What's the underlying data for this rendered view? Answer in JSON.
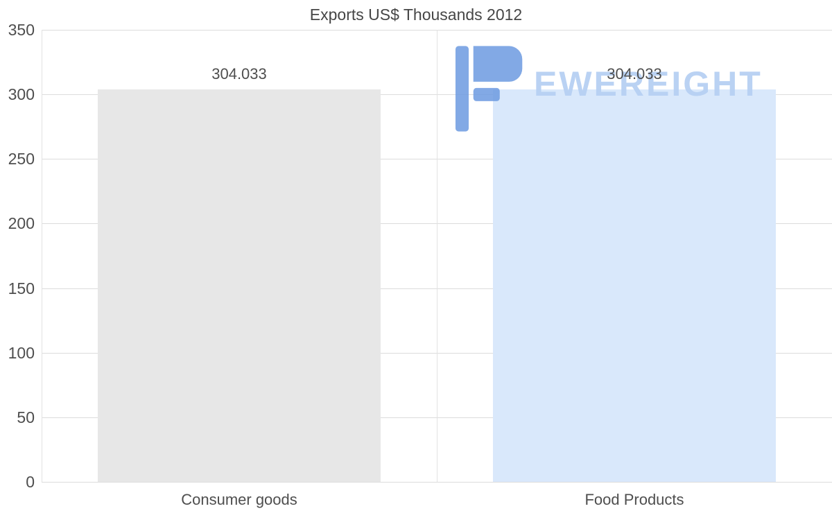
{
  "chart_data": {
    "type": "bar",
    "title": "Exports US$ Thousands 2012",
    "categories": [
      "Consumer goods",
      "Food Products"
    ],
    "values": [
      304.033,
      304.033
    ],
    "value_labels": [
      "304.033",
      "304.033"
    ],
    "bar_colors": [
      "#e7e7e7",
      "#d9e8fb"
    ],
    "xlabel": "",
    "ylabel": "",
    "ylim": [
      0,
      350
    ],
    "yticks": [
      0,
      50,
      100,
      150,
      200,
      250,
      300,
      350
    ],
    "grid": true,
    "legend": false
  },
  "watermark": {
    "text": "EWEREIGHT",
    "icon": "freight-flag-logo-icon",
    "icon_color": "#6d9be1",
    "text_color": "#b7d0f3"
  },
  "colors": {
    "background": "#ffffff",
    "text": "#4e4e4e",
    "gridline": "#dcdcdc"
  }
}
